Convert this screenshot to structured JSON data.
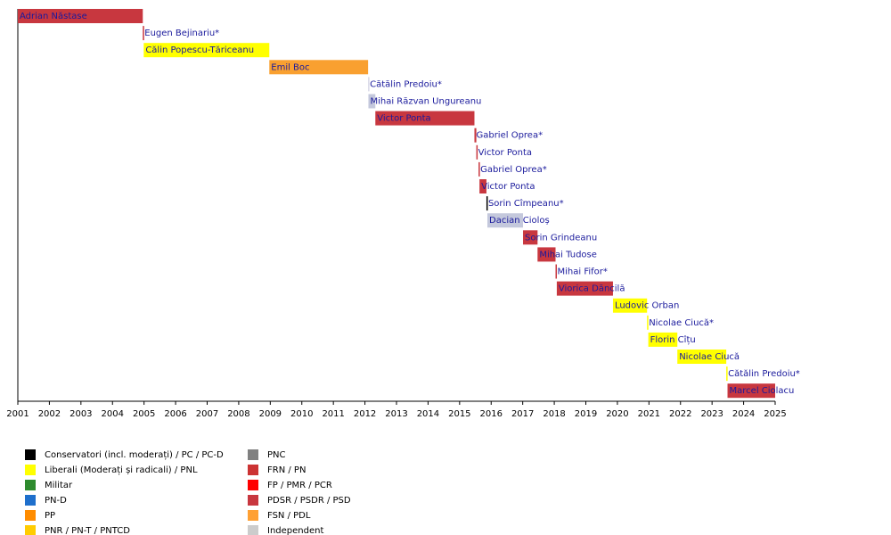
{
  "chart_data": {
    "type": "timeline",
    "xlim": [
      2001,
      2025
    ],
    "xticks": [
      2001,
      2002,
      2003,
      2004,
      2005,
      2006,
      2007,
      2008,
      2009,
      2010,
      2011,
      2012,
      2013,
      2014,
      2015,
      2016,
      2017,
      2018,
      2019,
      2020,
      2021,
      2022,
      2023,
      2024,
      2025
    ],
    "bars": [
      {
        "name": "Adrian Năstase",
        "start": 2001,
        "end": 2004.96,
        "color": "#c8373f"
      },
      {
        "name": "Eugen Bejinariu*",
        "start": 2004.96,
        "end": 2004.99,
        "color": "#c8373f"
      },
      {
        "name": "Călin Popescu-Tăriceanu",
        "start": 2004.99,
        "end": 2008.97,
        "color": "#ffff00"
      },
      {
        "name": "Emil Boc",
        "start": 2008.97,
        "end": 2012.1,
        "color": "#f9a030"
      },
      {
        "name": "Cătălin Predoiu*",
        "start": 2012.1,
        "end": 2012.12,
        "color": "#d8d8e8"
      },
      {
        "name": "Mihai Răzvan Ungureanu",
        "start": 2012.11,
        "end": 2012.33,
        "color": "#c4c8dc"
      },
      {
        "name": "Victor Ponta",
        "start": 2012.33,
        "end": 2015.47,
        "color": "#c8373f"
      },
      {
        "name": "Gabriel Oprea*",
        "start": 2015.47,
        "end": 2015.53,
        "color": "#c8373f"
      },
      {
        "name": "Victor Ponta",
        "start": 2015.53,
        "end": 2015.57,
        "color": "#c8373f"
      },
      {
        "name": "Gabriel Oprea*",
        "start": 2015.6,
        "end": 2015.63,
        "color": "#c8373f"
      },
      {
        "name": "Victor Ponta",
        "start": 2015.63,
        "end": 2015.85,
        "color": "#c8373f"
      },
      {
        "name": "Sorin Cîmpeanu*",
        "start": 2015.85,
        "end": 2015.88,
        "color": "#000000"
      },
      {
        "name": "Dacian Cioloș",
        "start": 2015.88,
        "end": 2017.01,
        "color": "#c4c8dc"
      },
      {
        "name": "Sorin Grindeanu",
        "start": 2017.01,
        "end": 2017.47,
        "color": "#c8373f"
      },
      {
        "name": "Mihai Tudose",
        "start": 2017.47,
        "end": 2018.04,
        "color": "#c8373f"
      },
      {
        "name": "Mihai Fifor*",
        "start": 2018.04,
        "end": 2018.08,
        "color": "#c8373f"
      },
      {
        "name": "Viorica Dăncilă",
        "start": 2018.08,
        "end": 2019.86,
        "color": "#c8373f"
      },
      {
        "name": "Ludovic Orban",
        "start": 2019.86,
        "end": 2020.94,
        "color": "#ffff00"
      },
      {
        "name": "Nicolae Ciucă*",
        "start": 2020.94,
        "end": 2020.98,
        "color": "#ffff00"
      },
      {
        "name": "Florin Cîțu",
        "start": 2020.98,
        "end": 2021.9,
        "color": "#ffff00"
      },
      {
        "name": "Nicolae Ciucă",
        "start": 2021.9,
        "end": 2023.45,
        "color": "#ffff00"
      },
      {
        "name": "Cătălin Predoiu*",
        "start": 2023.45,
        "end": 2023.49,
        "color": "#ffff00"
      },
      {
        "name": "Marcel Ciolacu",
        "start": 2023.49,
        "end": 2025,
        "color": "#c8373f"
      }
    ],
    "legend": [
      {
        "label": "Conservatori (incl. moderați) / PC / PC-D",
        "color": "#000000"
      },
      {
        "label": "Liberali (Moderați și radicali) / PNL",
        "color": "#ffff00"
      },
      {
        "label": "Militar",
        "color": "#2e8b2e"
      },
      {
        "label": "PN-D",
        "color": "#1e6fcc"
      },
      {
        "label": "PP",
        "color": "#ff8c00"
      },
      {
        "label": "PNR / PN-T / PNTCD",
        "color": "#ffcc00"
      },
      {
        "label": "PNC",
        "color": "#808080"
      },
      {
        "label": "FRN / PN",
        "color": "#cc3333"
      },
      {
        "label": "FP / PMR / PCR",
        "color": "#ff0000"
      },
      {
        "label": "PDSR / PSDR / PSD",
        "color": "#c8373f"
      },
      {
        "label": "FSN / PDL",
        "color": "#ffa033"
      },
      {
        "label": "Independent",
        "color": "#cccccc"
      }
    ]
  }
}
